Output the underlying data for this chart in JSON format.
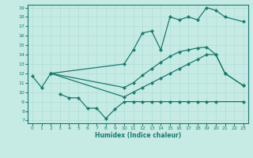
{
  "xlabel": "Humidex (Indice chaleur)",
  "xlim": [
    -0.5,
    23.5
  ],
  "ylim": [
    6.7,
    19.3
  ],
  "yticks": [
    7,
    8,
    9,
    10,
    11,
    12,
    13,
    14,
    15,
    16,
    17,
    18,
    19
  ],
  "xticks": [
    0,
    1,
    2,
    3,
    4,
    5,
    6,
    7,
    8,
    9,
    10,
    11,
    12,
    13,
    14,
    15,
    16,
    17,
    18,
    19,
    20,
    21,
    22,
    23
  ],
  "bg_color": "#c5ebe4",
  "line_color": "#1a7a6e",
  "grid_color": "#b0ddd6",
  "lines": [
    {
      "x": [
        0,
        1,
        2,
        10,
        11,
        12,
        13,
        14,
        15,
        16,
        17,
        18,
        19,
        20,
        21,
        23
      ],
      "y": [
        11.7,
        10.5,
        12.0,
        13.0,
        14.5,
        16.3,
        16.5,
        14.5,
        18.0,
        17.7,
        18.0,
        17.7,
        19.0,
        18.7,
        18.0,
        17.5
      ]
    },
    {
      "x": [
        2,
        10,
        11,
        12,
        13,
        14,
        15,
        16,
        17,
        18,
        19,
        20,
        21,
        23
      ],
      "y": [
        12.0,
        10.5,
        11.0,
        11.8,
        12.5,
        13.2,
        13.8,
        14.3,
        14.5,
        14.7,
        14.8,
        14.0,
        12.0,
        10.7
      ]
    },
    {
      "x": [
        2,
        10,
        11,
        12,
        13,
        14,
        15,
        16,
        17,
        18,
        19,
        20,
        21,
        23
      ],
      "y": [
        12.0,
        9.5,
        10.0,
        10.5,
        11.0,
        11.5,
        12.0,
        12.5,
        13.0,
        13.5,
        14.0,
        14.0,
        12.0,
        10.7
      ]
    },
    {
      "x": [
        3,
        4,
        5,
        6,
        7,
        8,
        9,
        10,
        11,
        12,
        13,
        14,
        15,
        16,
        17,
        18,
        19,
        20,
        23
      ],
      "y": [
        9.8,
        9.4,
        9.4,
        8.3,
        8.3,
        7.2,
        8.2,
        9.0,
        9.0,
        9.0,
        9.0,
        9.0,
        9.0,
        9.0,
        9.0,
        9.0,
        9.0,
        9.0,
        9.0
      ]
    }
  ]
}
